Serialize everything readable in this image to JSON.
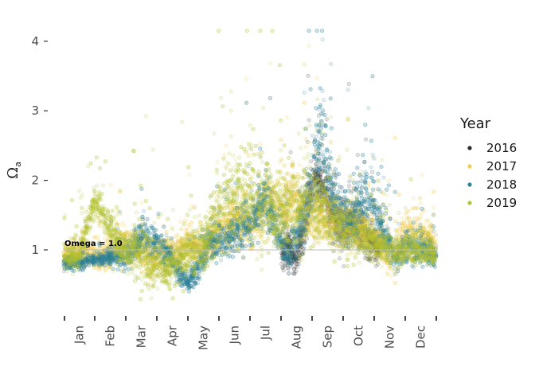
{
  "chart_data": {
    "type": "scatter",
    "title": "",
    "xlabel": "",
    "ylabel": "Ω",
    "ylabel_subscript": "a",
    "x_tick_labels": [
      "Jan",
      "Feb",
      "Mar",
      "Apr",
      "May",
      "Jun",
      "Jul",
      "Aug",
      "Sep",
      "Oct",
      "Nov",
      "Dec"
    ],
    "y_ticks": [
      "1",
      "2",
      "3",
      "4"
    ],
    "xlim": [
      0,
      12
    ],
    "ylim": [
      0.05,
      4.25
    ],
    "grid": false,
    "reference_line": {
      "value": 1.0,
      "label": "Omega = 1.0"
    },
    "legend": {
      "title": "Year",
      "position": "right"
    },
    "series": [
      {
        "name": "2016",
        "color": "#2b2b2b",
        "profile": [
          [
            7.0,
            1.0,
            0.2
          ],
          [
            7.2,
            1.0,
            0.28
          ],
          [
            7.45,
            0.85,
            0.18
          ],
          [
            7.7,
            1.2,
            0.35
          ],
          [
            7.9,
            1.7,
            0.4
          ],
          [
            8.1,
            2.0,
            0.3
          ],
          [
            8.3,
            1.9,
            0.3
          ],
          [
            8.5,
            1.7,
            0.3
          ],
          [
            8.75,
            1.4,
            0.3
          ],
          [
            9.0,
            1.3,
            0.3
          ],
          [
            9.25,
            1.4,
            0.25
          ],
          [
            9.5,
            1.3,
            0.25
          ],
          [
            9.75,
            1.2,
            0.3
          ],
          [
            10.0,
            1.1,
            0.2
          ],
          [
            10.2,
            1.0,
            0.2
          ]
        ]
      },
      {
        "name": "2017",
        "color": "#f2cc4a",
        "profile": [
          [
            0.0,
            0.9,
            0.15
          ],
          [
            0.5,
            0.95,
            0.12
          ],
          [
            1.0,
            0.9,
            0.2
          ],
          [
            1.5,
            0.95,
            0.2
          ],
          [
            2.0,
            1.1,
            0.2
          ],
          [
            2.5,
            1.0,
            0.2
          ],
          [
            3.0,
            0.9,
            0.25
          ],
          [
            3.5,
            0.95,
            0.25
          ],
          [
            4.0,
            1.05,
            0.2
          ],
          [
            4.5,
            1.0,
            0.2
          ],
          [
            5.0,
            1.3,
            0.25
          ],
          [
            5.5,
            1.4,
            0.3
          ],
          [
            6.0,
            1.4,
            0.35
          ],
          [
            6.5,
            1.6,
            0.4
          ],
          [
            7.0,
            1.6,
            0.4
          ],
          [
            7.5,
            1.7,
            0.4
          ],
          [
            8.0,
            1.5,
            0.35
          ],
          [
            8.5,
            1.4,
            0.3
          ],
          [
            9.0,
            1.4,
            0.3
          ],
          [
            9.5,
            1.3,
            0.25
          ],
          [
            10.0,
            1.2,
            0.25
          ],
          [
            10.5,
            0.9,
            0.3
          ],
          [
            11.0,
            1.2,
            0.25
          ],
          [
            11.5,
            1.2,
            0.3
          ],
          [
            12.0,
            1.0,
            0.2
          ]
        ]
      },
      {
        "name": "2018",
        "color": "#2e8299",
        "profile": [
          [
            0.0,
            0.8,
            0.1
          ],
          [
            0.5,
            0.8,
            0.07
          ],
          [
            1.0,
            0.85,
            0.08
          ],
          [
            1.5,
            0.9,
            0.1
          ],
          [
            2.0,
            0.9,
            0.2
          ],
          [
            2.5,
            1.2,
            0.2
          ],
          [
            3.0,
            1.1,
            0.2
          ],
          [
            3.5,
            0.85,
            0.2
          ],
          [
            4.0,
            0.5,
            0.1
          ],
          [
            4.3,
            0.7,
            0.2
          ],
          [
            4.7,
            1.1,
            0.2
          ],
          [
            5.2,
            1.1,
            0.2
          ],
          [
            5.5,
            1.2,
            0.25
          ],
          [
            6.0,
            1.4,
            0.3
          ],
          [
            6.5,
            1.7,
            0.35
          ],
          [
            7.0,
            1.1,
            0.25
          ],
          [
            7.3,
            0.9,
            0.2
          ],
          [
            7.7,
            1.5,
            0.4
          ],
          [
            8.0,
            2.0,
            0.5
          ],
          [
            8.2,
            2.6,
            0.7
          ],
          [
            8.4,
            2.3,
            0.6
          ],
          [
            8.7,
            1.7,
            0.4
          ],
          [
            9.0,
            1.5,
            0.4
          ],
          [
            9.3,
            1.4,
            0.3
          ],
          [
            9.7,
            1.8,
            0.5
          ],
          [
            10.0,
            1.6,
            0.4
          ],
          [
            10.3,
            1.2,
            0.3
          ],
          [
            10.7,
            0.9,
            0.15
          ],
          [
            11.0,
            1.0,
            0.2
          ],
          [
            11.5,
            1.0,
            0.2
          ],
          [
            12.0,
            0.9,
            0.15
          ]
        ]
      },
      {
        "name": "2019",
        "color": "#b5c531",
        "profile": [
          [
            0.0,
            0.9,
            0.2
          ],
          [
            0.5,
            0.9,
            0.2
          ],
          [
            1.0,
            1.7,
            0.2
          ],
          [
            1.3,
            1.5,
            0.2
          ],
          [
            1.7,
            1.1,
            0.2
          ],
          [
            2.0,
            1.0,
            0.2
          ],
          [
            2.5,
            0.9,
            0.4
          ],
          [
            3.0,
            0.7,
            0.3
          ],
          [
            3.5,
            0.75,
            0.3
          ],
          [
            4.0,
            0.95,
            0.3
          ],
          [
            4.5,
            1.0,
            0.3
          ],
          [
            5.0,
            1.5,
            0.5
          ],
          [
            5.5,
            1.8,
            0.6
          ],
          [
            6.0,
            1.7,
            0.6
          ],
          [
            6.5,
            1.6,
            0.6
          ],
          [
            7.0,
            1.5,
            0.5
          ],
          [
            7.5,
            1.6,
            0.5
          ],
          [
            8.0,
            1.7,
            0.5
          ],
          [
            8.5,
            1.5,
            0.4
          ],
          [
            9.0,
            1.3,
            0.3
          ],
          [
            9.5,
            1.2,
            0.3
          ],
          [
            10.0,
            1.1,
            0.25
          ],
          [
            10.5,
            1.0,
            0.2
          ],
          [
            11.0,
            1.0,
            0.2
          ],
          [
            11.5,
            1.0,
            0.2
          ],
          [
            12.0,
            0.9,
            0.15
          ]
        ]
      }
    ]
  }
}
